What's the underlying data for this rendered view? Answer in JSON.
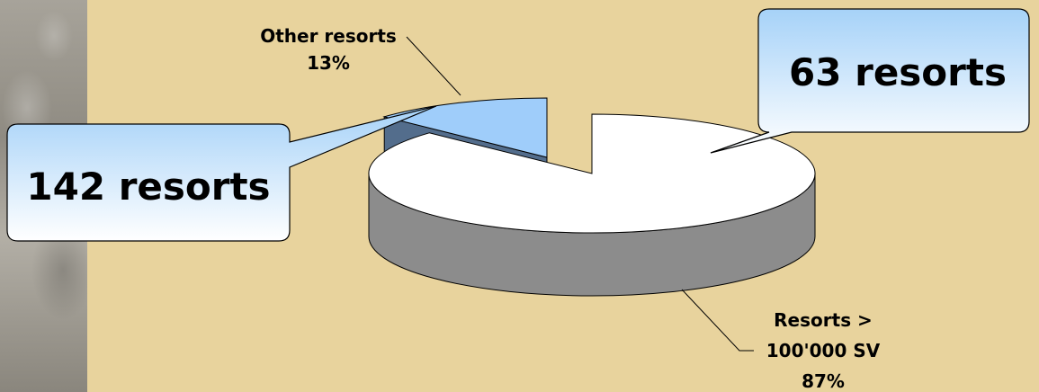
{
  "chart_data": {
    "type": "pie",
    "slices": [
      {
        "label_lines": [
          "Resorts >",
          "100'000 SV"
        ],
        "percent_label": "87%",
        "value": 87,
        "color": "#ffffff",
        "side_color": "#8c8c8c"
      },
      {
        "label_lines": [
          "Other resorts"
        ],
        "percent_label": "13%",
        "value": 13,
        "color": "#9fcdfa",
        "side_color": "#536d8c"
      }
    ],
    "callouts": [
      {
        "text": "142 resorts"
      },
      {
        "text": "63 resorts"
      }
    ]
  }
}
